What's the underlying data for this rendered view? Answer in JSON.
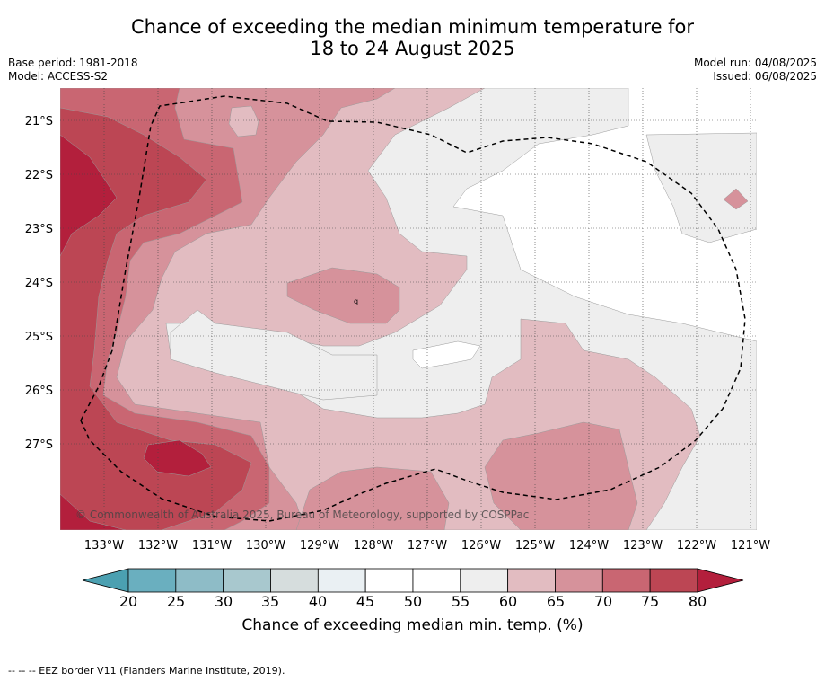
{
  "title_line1": "Chance of exceeding the median minimum temperature for",
  "title_line2": "18 to 24 August 2025",
  "meta": {
    "base_period": "Base period: 1981-2018",
    "model": "Model: ACCESS-S2",
    "model_run": "Model run: 04/08/2025",
    "issued": "Issued: 06/08/2025"
  },
  "map": {
    "lat_labels": [
      "21°S",
      "22°S",
      "23°S",
      "24°S",
      "25°S",
      "26°S",
      "27°S"
    ],
    "lon_labels": [
      "133°W",
      "132°W",
      "131°W",
      "130°W",
      "129°W",
      "128°W",
      "127°W",
      "126°W",
      "125°W",
      "124°W",
      "123°W",
      "122°W",
      "121°W"
    ],
    "copyright": "© Commonwealth of Australia 2025, Bureau of Meteorology, supported by COSPPac",
    "colors": {
      "c55_60": "#eeeeee",
      "c60_65": "#e2bcc1",
      "c65_70": "#d6929b",
      "c70_75": "#c96672",
      "c75_80": "#bc4654",
      "c80_plus": "#b31f3c"
    }
  },
  "colorbar": {
    "ticks": [
      "20",
      "25",
      "30",
      "35",
      "40",
      "45",
      "50",
      "55",
      "60",
      "65",
      "70",
      "75",
      "80"
    ],
    "colors": [
      "#4ba0b1",
      "#6aafbf",
      "#8ebcc7",
      "#a8c8ce",
      "#d6dddd",
      "#eaf0f3",
      "#ffffff",
      "#ffffff",
      "#eeeeee",
      "#e2bcc1",
      "#d6929b",
      "#c96672",
      "#bc4654",
      "#b31f3c"
    ],
    "label": "Chance of exceeding median min. temp. (%)"
  },
  "footer": "--  --  -- EEZ border V11 (Flanders Marine Institute, 2019)."
}
